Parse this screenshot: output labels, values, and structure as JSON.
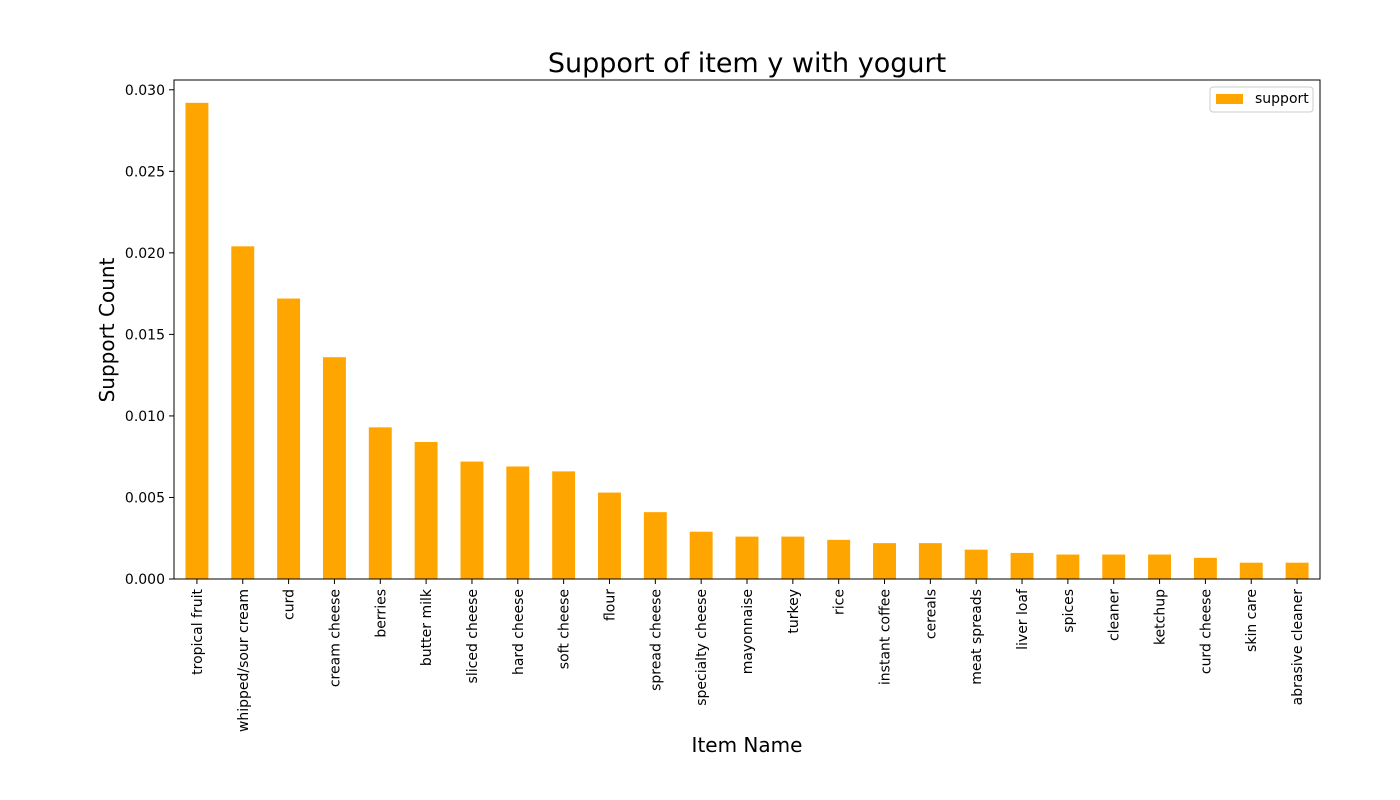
{
  "chart_data": {
    "type": "bar",
    "title": "Support of item y with yogurt",
    "xlabel": "Item Name",
    "ylabel": "Support Count",
    "categories": [
      "tropical fruit",
      "whipped/sour cream",
      "curd",
      "cream cheese",
      "berries",
      "butter milk",
      "sliced cheese",
      "hard cheese",
      "soft cheese",
      "flour",
      "spread cheese",
      "specialty cheese",
      "mayonnaise",
      "turkey",
      "rice",
      "instant coffee",
      "cereals",
      "meat spreads",
      "liver loaf",
      "spices",
      "cleaner",
      "ketchup",
      "curd cheese",
      "skin care",
      "abrasive cleaner"
    ],
    "series": [
      {
        "name": "support",
        "color": "#ffa500",
        "values": [
          0.0292,
          0.0204,
          0.0172,
          0.0136,
          0.0093,
          0.0084,
          0.0072,
          0.0069,
          0.0066,
          0.0053,
          0.0041,
          0.0029,
          0.0026,
          0.0026,
          0.0024,
          0.0022,
          0.0022,
          0.0018,
          0.0016,
          0.0015,
          0.0015,
          0.0015,
          0.0013,
          0.001,
          0.001
        ]
      }
    ],
    "yticks": [
      "0.000",
      "0.005",
      "0.010",
      "0.015",
      "0.020",
      "0.025",
      "0.030"
    ],
    "ylim": [
      0,
      0.0306
    ],
    "grid": false,
    "legend_position": "top-right"
  }
}
